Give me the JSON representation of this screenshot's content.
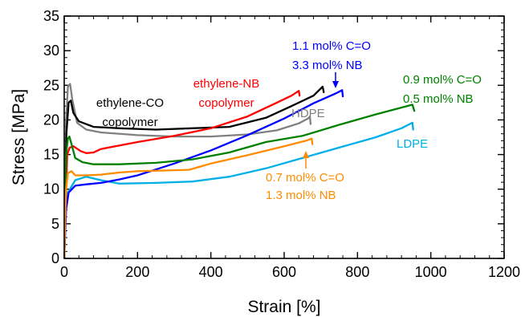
{
  "chart_data": {
    "type": "line",
    "xlabel": "Strain [%]",
    "ylabel": "Stress [MPa]",
    "xlim": [
      0,
      1200
    ],
    "ylim": [
      0,
      35
    ],
    "x_major_ticks": [
      0,
      200,
      400,
      600,
      800,
      1000,
      1200
    ],
    "y_major_ticks": [
      0,
      5,
      10,
      15,
      20,
      25,
      30,
      35
    ],
    "x_minor_step": 40,
    "y_minor_step": 1,
    "grid": false,
    "series": [
      {
        "name": "LDPE",
        "color": "#00b0e6",
        "points": [
          [
            0,
            0
          ],
          [
            5,
            7.5
          ],
          [
            10,
            9.5
          ],
          [
            30,
            11.3
          ],
          [
            60,
            11.8
          ],
          [
            100,
            11.3
          ],
          [
            150,
            10.8
          ],
          [
            250,
            10.9
          ],
          [
            350,
            11.1
          ],
          [
            450,
            11.8
          ],
          [
            550,
            13.0
          ],
          [
            650,
            14.5
          ],
          [
            750,
            16.0
          ],
          [
            850,
            17.5
          ],
          [
            920,
            18.8
          ],
          [
            950,
            19.6
          ],
          [
            952,
            18.6
          ]
        ]
      },
      {
        "name": "HDPE",
        "color": "#808080",
        "points": [
          [
            0,
            0
          ],
          [
            5,
            20.0
          ],
          [
            10,
            24.8
          ],
          [
            16,
            25.2
          ],
          [
            22,
            23.0
          ],
          [
            35,
            19.6
          ],
          [
            60,
            18.6
          ],
          [
            100,
            18.2
          ],
          [
            200,
            17.8
          ],
          [
            300,
            17.6
          ],
          [
            400,
            17.6
          ],
          [
            500,
            17.9
          ],
          [
            580,
            18.5
          ],
          [
            640,
            19.5
          ],
          [
            665,
            20.2
          ],
          [
            670,
            20.5
          ],
          [
            672,
            19.4
          ]
        ]
      },
      {
        "name": "ethylene-CO copolymer",
        "color": "#000000",
        "points": [
          [
            0,
            0
          ],
          [
            6,
            18.0
          ],
          [
            12,
            22.5
          ],
          [
            18,
            22.8
          ],
          [
            25,
            21.0
          ],
          [
            40,
            19.8
          ],
          [
            80,
            19.0
          ],
          [
            150,
            18.8
          ],
          [
            250,
            18.6
          ],
          [
            350,
            18.8
          ],
          [
            450,
            19.0
          ],
          [
            550,
            20.3
          ],
          [
            620,
            22.0
          ],
          [
            680,
            23.5
          ],
          [
            705,
            24.8
          ],
          [
            708,
            24.0
          ]
        ]
      },
      {
        "name": "ethylene-NB copolymer",
        "color": "#ff0000",
        "points": [
          [
            0,
            0
          ],
          [
            8,
            15.0
          ],
          [
            15,
            16.0
          ],
          [
            25,
            16.2
          ],
          [
            45,
            15.5
          ],
          [
            60,
            15.2
          ],
          [
            80,
            15.3
          ],
          [
            100,
            15.8
          ],
          [
            200,
            16.8
          ],
          [
            300,
            17.7
          ],
          [
            400,
            18.8
          ],
          [
            500,
            20.5
          ],
          [
            580,
            22.5
          ],
          [
            620,
            23.5
          ],
          [
            640,
            24.2
          ],
          [
            642,
            23.5
          ]
        ]
      },
      {
        "name": "1.1 mol% C=O / 3.3 mol% NB",
        "color": "#0000ff",
        "points": [
          [
            0,
            0
          ],
          [
            5,
            7.0
          ],
          [
            12,
            9.5
          ],
          [
            30,
            10.5
          ],
          [
            60,
            10.7
          ],
          [
            100,
            10.9
          ],
          [
            150,
            11.4
          ],
          [
            200,
            12.0
          ],
          [
            300,
            13.7
          ],
          [
            400,
            15.6
          ],
          [
            500,
            17.8
          ],
          [
            600,
            20.2
          ],
          [
            680,
            22.4
          ],
          [
            740,
            23.8
          ],
          [
            758,
            24.3
          ],
          [
            760,
            23.4
          ]
        ]
      },
      {
        "name": "0.9 mol% C=O / 0.5 mol% NB",
        "color": "#008000",
        "points": [
          [
            0,
            0
          ],
          [
            5,
            15.0
          ],
          [
            10,
            17.3
          ],
          [
            14,
            17.6
          ],
          [
            20,
            16.5
          ],
          [
            30,
            14.5
          ],
          [
            50,
            13.9
          ],
          [
            80,
            13.6
          ],
          [
            150,
            13.6
          ],
          [
            250,
            13.8
          ],
          [
            350,
            14.3
          ],
          [
            450,
            15.3
          ],
          [
            550,
            16.8
          ],
          [
            650,
            17.7
          ],
          [
            750,
            19.3
          ],
          [
            850,
            20.8
          ],
          [
            950,
            22.2
          ],
          [
            955,
            21.3
          ]
        ]
      },
      {
        "name": "0.7 mol% C=O / 1.3 mol% NB",
        "color": "#ff8c00",
        "points": [
          [
            0,
            0
          ],
          [
            5,
            10.0
          ],
          [
            10,
            12.3
          ],
          [
            20,
            12.6
          ],
          [
            30,
            12.0
          ],
          [
            60,
            12.0
          ],
          [
            100,
            12.1
          ],
          [
            150,
            12.4
          ],
          [
            200,
            12.6
          ],
          [
            280,
            12.7
          ],
          [
            340,
            12.8
          ],
          [
            400,
            13.7
          ],
          [
            500,
            14.9
          ],
          [
            600,
            16.2
          ],
          [
            660,
            17.0
          ],
          [
            675,
            17.3
          ],
          [
            677,
            16.5
          ]
        ]
      }
    ],
    "annotations": {
      "ldpe": "LDPE",
      "hdpe": "HDPE",
      "eco_1": "ethylene-CO",
      "eco_2": "copolymer",
      "enb_1": "ethylene-NB",
      "enb_2": "copolymer",
      "blue_1": "1.1 mol% C=O",
      "blue_2": "3.3 mol% NB",
      "green_1": "0.9 mol% C=O",
      "green_2": "0.5 mol% NB",
      "orange_1": "0.7 mol% C=O",
      "orange_2": "1.3 mol% NB"
    }
  }
}
